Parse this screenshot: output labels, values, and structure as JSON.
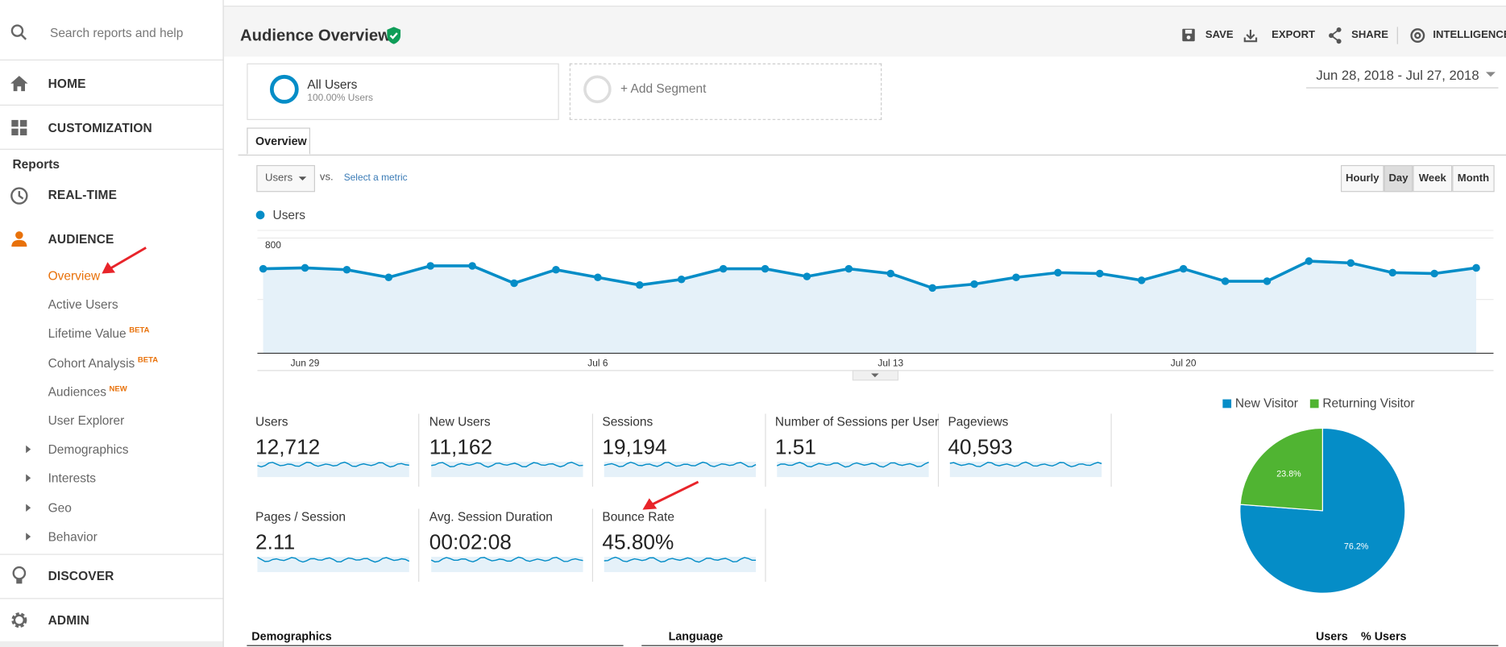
{
  "search_placeholder": "Search reports and help",
  "nav": {
    "home": "HOME",
    "customization": "CUSTOMIZATION",
    "reports_heading": "Reports",
    "realtime": "REAL-TIME",
    "audience": "AUDIENCE",
    "audience_items": [
      {
        "label": "Overview",
        "active": true
      },
      {
        "label": "Active Users"
      },
      {
        "label": "Lifetime Value",
        "badge": "BETA"
      },
      {
        "label": "Cohort Analysis",
        "badge": "BETA"
      },
      {
        "label": "Audiences",
        "badge": "NEW"
      },
      {
        "label": "User Explorer"
      }
    ],
    "audience_groups": [
      "Demographics",
      "Interests",
      "Geo",
      "Behavior"
    ],
    "discover": "DISCOVER",
    "admin": "ADMIN"
  },
  "header": {
    "title": "Audience Overview",
    "actions": [
      "SAVE",
      "EXPORT",
      "SHARE",
      "INTELLIGENCE"
    ]
  },
  "segments": [
    {
      "name": "All Users",
      "detail": "100.00% Users"
    },
    {
      "name": "+ Add Segment"
    }
  ],
  "date_range": "Jun 28, 2018 - Jul 27, 2018",
  "tab": "Overview",
  "metric_selector": {
    "selected": "Users",
    "vs": "vs.",
    "link": "Select a metric"
  },
  "granularity": [
    {
      "label": "Hourly"
    },
    {
      "label": "Day",
      "active": true
    },
    {
      "label": "Week"
    },
    {
      "label": "Month"
    }
  ],
  "chart_data": [
    {
      "type": "line",
      "categories": [
        null,
        "Jun 29",
        null,
        null,
        null,
        null,
        null,
        null,
        "Jul 6",
        null,
        null,
        null,
        null,
        null,
        null,
        "Jul 13",
        null,
        null,
        null,
        null,
        null,
        null,
        "Jul 20",
        null,
        null,
        null,
        null,
        null,
        null,
        null
      ],
      "series": [
        {
          "name": "Users",
          "color": "#058dc7",
          "values": [
            600,
            606,
            594,
            544,
            619,
            619,
            506,
            594,
            544,
            494,
            531,
            600,
            600,
            550,
            600,
            569,
            475,
            500,
            544,
            575,
            569,
            525,
            600,
            519,
            519,
            650,
            638,
            575,
            569,
            606
          ]
        }
      ],
      "ylim": [
        50,
        850
      ],
      "yticks": [
        400,
        800
      ],
      "grid": true
    },
    {
      "type": "pie",
      "categories": [
        "New Visitor",
        "Returning Visitor"
      ],
      "values": [
        76.2,
        23.8
      ],
      "value_labels": [
        "76.2%",
        "23.8%"
      ],
      "colors": [
        "#058dc7",
        "#50b432"
      ]
    }
  ],
  "metrics": [
    {
      "label": "Users",
      "value": "12,712"
    },
    {
      "label": "New Users",
      "value": "11,162"
    },
    {
      "label": "Sessions",
      "value": "19,194"
    },
    {
      "label": "Number of Sessions per User",
      "value": "1.51"
    },
    {
      "label": "Pageviews",
      "value": "40,593"
    },
    {
      "label": "Pages / Session",
      "value": "2.11"
    },
    {
      "label": "Avg. Session Duration",
      "value": "00:02:08"
    },
    {
      "label": "Bounce Rate",
      "value": "45.80%"
    }
  ],
  "table": {
    "left_heading": "Demographics",
    "right_heading": "Language",
    "columns": [
      "Users",
      "% Users"
    ]
  }
}
